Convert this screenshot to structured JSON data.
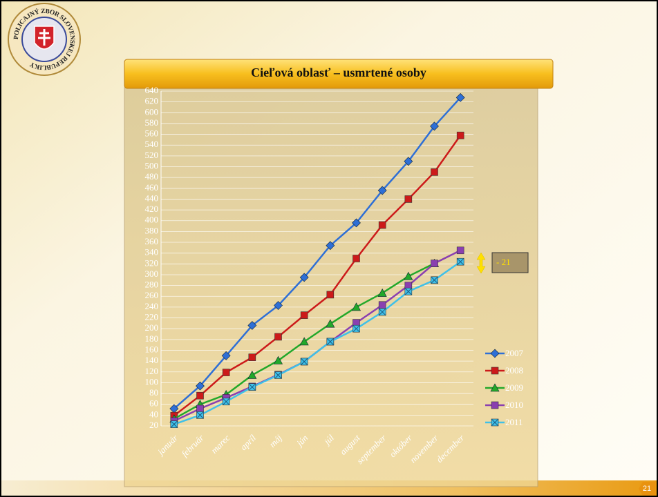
{
  "badge_text": "POLICAJNÝ ZBOR SLOVENSKEJ REPUBLIKY",
  "page_number": "21",
  "chart_data": {
    "type": "line",
    "title": "Cieľová oblasť – usmrtené osoby",
    "categories": [
      "január",
      "február",
      "marec",
      "apríl",
      "máj",
      "jún",
      "júl",
      "august",
      "september",
      "október",
      "november",
      "december"
    ],
    "series": [
      {
        "name": "2007",
        "color": "#2e6fd6",
        "marker": "diamond",
        "values": [
          52,
          94,
          150,
          206,
          243,
          295,
          354,
          396,
          456,
          510,
          575,
          628
        ]
      },
      {
        "name": "2008",
        "color": "#cc1a1a",
        "marker": "square",
        "values": [
          39,
          76,
          119,
          147,
          185,
          225,
          263,
          330,
          392,
          440,
          490,
          558
        ]
      },
      {
        "name": "2009",
        "color": "#22a82a",
        "marker": "triangle",
        "values": [
          33,
          60,
          78,
          114,
          141,
          176,
          209,
          240,
          266,
          297,
          321,
          null
        ]
      },
      {
        "name": "2010",
        "color": "#8a3fb0",
        "marker": "square",
        "values": [
          29,
          52,
          72,
          93,
          115,
          139,
          176,
          211,
          244,
          280,
          321,
          345
        ]
      },
      {
        "name": "2011",
        "color": "#3fc0e8",
        "marker": "xsquare",
        "values": [
          23,
          40,
          65,
          92,
          114,
          139,
          176,
          200,
          231,
          269,
          290,
          324
        ]
      }
    ],
    "ylim": [
      20,
      640
    ],
    "yticks": [
      20,
      40,
      60,
      80,
      100,
      120,
      140,
      160,
      180,
      200,
      220,
      240,
      260,
      280,
      300,
      320,
      340,
      360,
      380,
      400,
      420,
      440,
      460,
      480,
      500,
      520,
      540,
      560,
      580,
      600,
      620,
      640
    ],
    "grid": true,
    "legend": "right",
    "annotation": "- 21"
  }
}
